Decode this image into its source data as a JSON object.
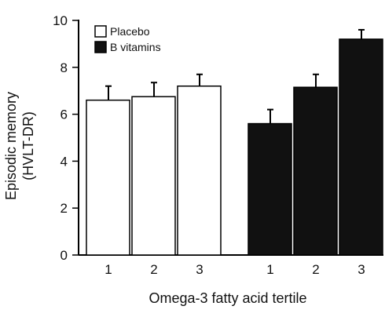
{
  "chart_data": {
    "type": "bar",
    "categories": [
      "1",
      "2",
      "3"
    ],
    "xlabel": "Omega-3 fatty acid tertile",
    "ylabel_lines": [
      "Episodic memory",
      "(HVLT-DR)"
    ],
    "ylim": [
      0,
      10
    ],
    "yticks": [
      0,
      2,
      4,
      6,
      8,
      10
    ],
    "error_bars": "upper only",
    "legend_position": "top-left",
    "series": [
      {
        "name": "Placebo",
        "fill": "#ffffff",
        "stroke": "#000000",
        "values": [
          6.6,
          6.75,
          7.2
        ],
        "errors": [
          0.6,
          0.6,
          0.5
        ]
      },
      {
        "name": "B vitamins",
        "fill": "#111111",
        "stroke": "#000000",
        "values": [
          5.6,
          7.15,
          9.2
        ],
        "errors": [
          0.6,
          0.55,
          0.4
        ]
      }
    ]
  }
}
